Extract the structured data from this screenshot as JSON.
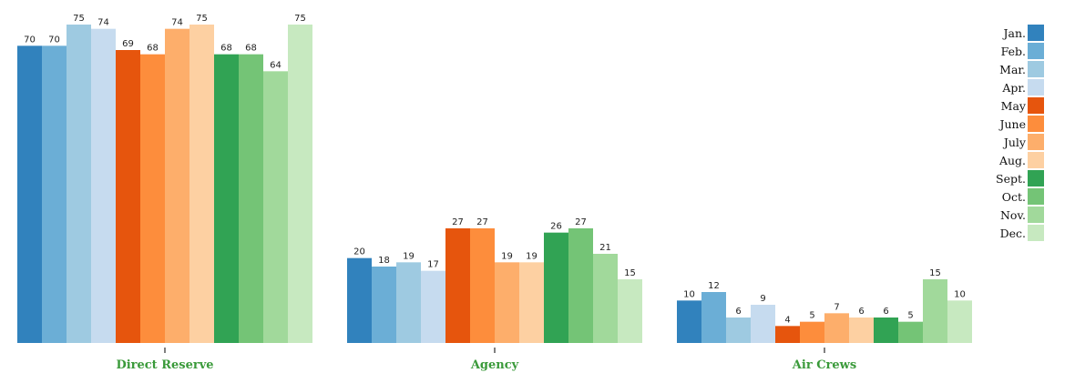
{
  "chart_data": {
    "type": "bar",
    "categories": [
      "Direct Reserve",
      "Agency",
      "Air Crews"
    ],
    "series": [
      {
        "name": "Jan.",
        "color": "#3182bd",
        "values": [
          70,
          20,
          10
        ]
      },
      {
        "name": "Feb.",
        "color": "#6baed6",
        "values": [
          70,
          18,
          12
        ]
      },
      {
        "name": "Mar.",
        "color": "#9ecae1",
        "values": [
          75,
          19,
          6
        ]
      },
      {
        "name": "Apr.",
        "color": "#c6dbef",
        "values": [
          74,
          17,
          9
        ]
      },
      {
        "name": "May",
        "color": "#e6550d",
        "values": [
          69,
          27,
          4
        ]
      },
      {
        "name": "June",
        "color": "#fd8d3c",
        "values": [
          68,
          27,
          5
        ]
      },
      {
        "name": "July",
        "color": "#fdae6b",
        "values": [
          74,
          19,
          7
        ]
      },
      {
        "name": "Aug.",
        "color": "#fdd0a2",
        "values": [
          75,
          19,
          6
        ]
      },
      {
        "name": "Sept.",
        "color": "#31a354",
        "values": [
          68,
          26,
          6
        ]
      },
      {
        "name": "Oct.",
        "color": "#74c476",
        "values": [
          68,
          27,
          5
        ]
      },
      {
        "name": "Nov.",
        "color": "#a1d99b",
        "values": [
          64,
          21,
          15
        ]
      },
      {
        "name": "Dec.",
        "color": "#c7e9c0",
        "values": [
          75,
          15,
          10
        ]
      }
    ],
    "ylim": [
      0,
      75
    ],
    "legend": "right",
    "grid": false,
    "title": "",
    "xlabel": "",
    "ylabel": ""
  }
}
